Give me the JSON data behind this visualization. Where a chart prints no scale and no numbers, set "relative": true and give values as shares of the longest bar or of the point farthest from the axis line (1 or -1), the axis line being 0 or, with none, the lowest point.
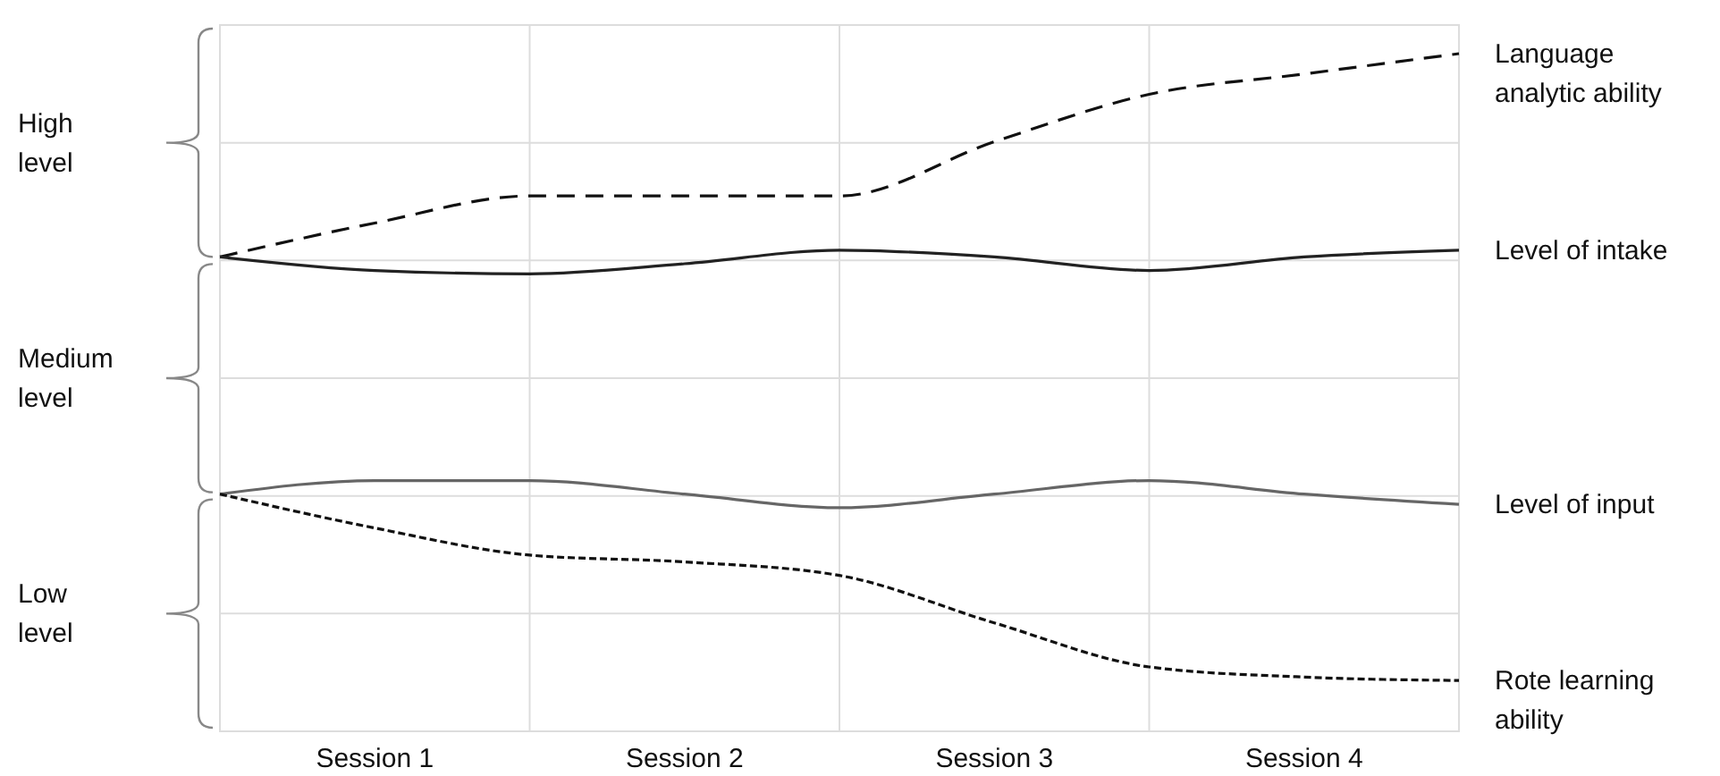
{
  "chart_data": {
    "type": "line",
    "relative": true,
    "categories": [
      null,
      "Session 1",
      null,
      "Session 2",
      null,
      "Session 3",
      null,
      "Session 4",
      null
    ],
    "series": [
      {
        "name": "Language analytic ability",
        "color": "#111111",
        "line_style": "dashed",
        "values": [
          0.7,
          0.75,
          0.79,
          0.79,
          0.79,
          0.87,
          0.94,
          0.97,
          1
        ]
      },
      {
        "name": "Level of intake",
        "color": "#222222",
        "line_style": "solid",
        "values": [
          0.7,
          0.68,
          0.675,
          0.69,
          0.71,
          0.7,
          0.68,
          0.7,
          0.71
        ]
      },
      {
        "name": "Level of input",
        "color": "#666666",
        "line_style": "solid",
        "values": [
          0.35,
          0.37,
          0.37,
          0.35,
          0.33,
          0.35,
          0.37,
          0.35,
          0.335
        ]
      },
      {
        "name": "Rote learning ability",
        "color": "#111111",
        "line_style": "dotted",
        "values": [
          0.35,
          0.3,
          0.26,
          0.25,
          0.23,
          0.16,
          0.095,
          0.08,
          0.075
        ]
      }
    ],
    "annotations": [
      "High level",
      "Medium level",
      "Low level"
    ],
    "grid": true,
    "legend": false
  }
}
